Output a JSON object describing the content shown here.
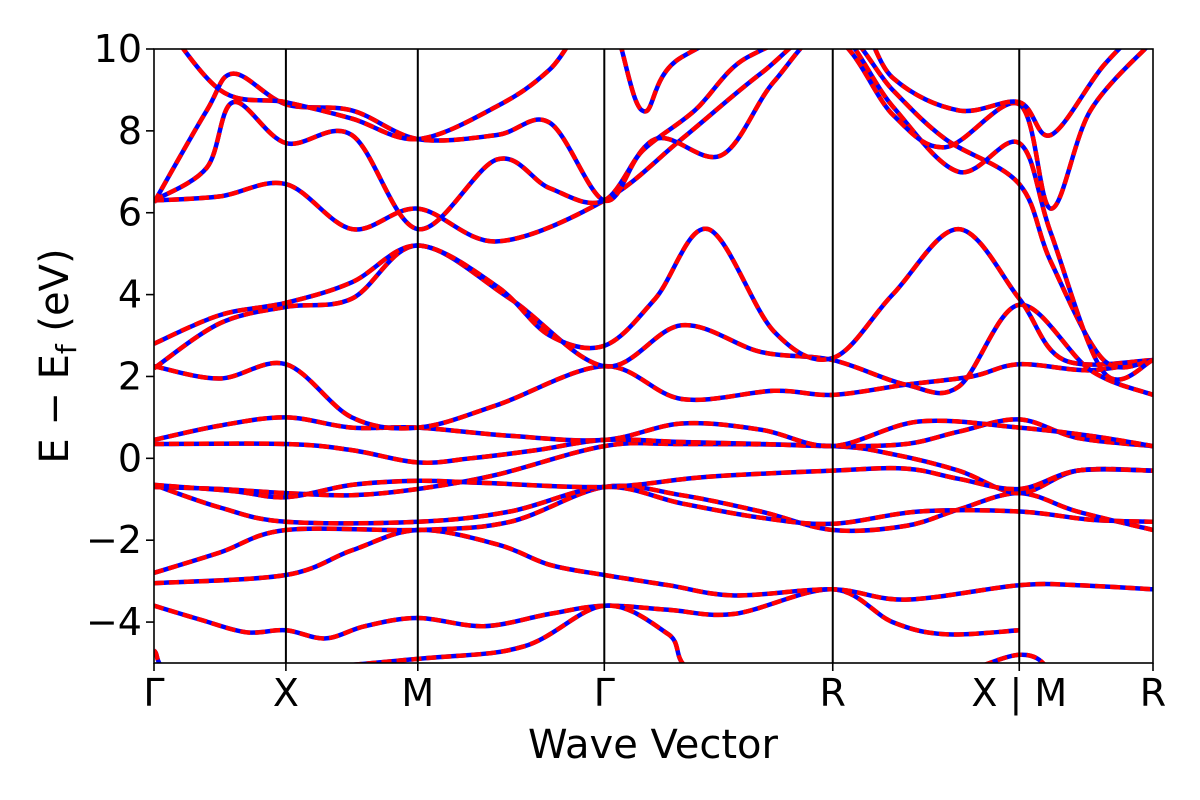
{
  "chart_data": {
    "type": "line",
    "title": "",
    "xlabel": "Wave Vector",
    "ylabel_parts": {
      "main": "E − E",
      "sub": "f",
      "unit": " (eV)"
    },
    "ylim": [
      -5,
      10
    ],
    "yticks": [
      10,
      8,
      6,
      4,
      2,
      0,
      -2,
      -4
    ],
    "ytick_labels": [
      "10",
      "8",
      "6",
      "4",
      "2",
      "0",
      "−2",
      "−4"
    ],
    "kpoints": [
      {
        "label": "Γ",
        "x": 0.0
      },
      {
        "label": "X",
        "x": 0.5
      },
      {
        "label": "M",
        "x": 1.0
      },
      {
        "label": "Γ",
        "x": 1.707
      },
      {
        "label": "R",
        "x": 2.573
      },
      {
        "label": "X | M",
        "x": 3.28
      },
      {
        "label": "R",
        "x": 3.787
      }
    ],
    "xlim": [
      0.0,
      3.787
    ],
    "colors": {
      "band_primary": "#ff0000",
      "band_secondary": "#0000ff",
      "frame": "#000000"
    },
    "series": [
      {
        "points": [
          [
            0,
            -3.6
          ],
          [
            0.18,
            -3.95
          ],
          [
            0.35,
            -4.25
          ],
          [
            0.5,
            -4.2
          ],
          [
            0.65,
            -4.4
          ],
          [
            0.8,
            -4.1
          ],
          [
            1.0,
            -3.9
          ],
          [
            1.25,
            -4.1
          ],
          [
            1.5,
            -3.8
          ],
          [
            1.707,
            -3.6
          ],
          [
            1.95,
            -3.7
          ],
          [
            2.2,
            -3.8
          ],
          [
            2.573,
            -3.2
          ],
          [
            2.8,
            -4.0
          ],
          [
            3.0,
            -4.3
          ],
          [
            3.28,
            -4.2
          ]
        ]
      },
      {
        "points": [
          [
            0,
            -3.05
          ],
          [
            0.5,
            -2.85
          ],
          [
            0.75,
            -2.25
          ],
          [
            1.0,
            -1.75
          ],
          [
            1.3,
            -2.1
          ],
          [
            1.5,
            -2.6
          ],
          [
            1.707,
            -2.85
          ],
          [
            1.95,
            -3.1
          ],
          [
            2.2,
            -3.35
          ],
          [
            2.573,
            -3.2
          ],
          [
            2.85,
            -3.45
          ],
          [
            3.28,
            -3.1
          ],
          [
            3.5,
            -3.1
          ],
          [
            3.787,
            -3.2
          ]
        ]
      },
      {
        "points": [
          [
            0,
            -2.8
          ],
          [
            0.25,
            -2.3
          ],
          [
            0.5,
            -1.75
          ],
          [
            1.0,
            -1.75
          ],
          [
            1.35,
            -1.55
          ],
          [
            1.707,
            -0.7
          ],
          [
            2.0,
            -0.9
          ],
          [
            2.3,
            -1.3
          ],
          [
            2.573,
            -1.75
          ],
          [
            2.85,
            -1.65
          ],
          [
            3.05,
            -1.25
          ],
          [
            3.28,
            -0.85
          ],
          [
            3.5,
            -1.3
          ],
          [
            3.787,
            -1.75
          ]
        ]
      },
      {
        "points": [
          [
            0,
            -0.65
          ],
          [
            0.25,
            -1.2
          ],
          [
            0.5,
            -1.55
          ],
          [
            1.0,
            -1.55
          ],
          [
            1.35,
            -1.3
          ],
          [
            1.707,
            -0.7
          ],
          [
            2.0,
            -1.1
          ],
          [
            2.3,
            -1.45
          ],
          [
            2.573,
            -1.6
          ],
          [
            2.9,
            -1.3
          ],
          [
            3.28,
            -1.3
          ],
          [
            3.55,
            -1.5
          ],
          [
            3.787,
            -1.55
          ]
        ]
      },
      {
        "points": [
          [
            0,
            -0.7
          ],
          [
            0.25,
            -0.75
          ],
          [
            0.5,
            -0.85
          ],
          [
            0.75,
            -0.9
          ],
          [
            1.0,
            -0.75
          ],
          [
            1.3,
            -0.4
          ],
          [
            1.707,
            0.3
          ],
          [
            2.0,
            0.35
          ],
          [
            2.573,
            0.3
          ],
          [
            2.8,
            0.1
          ],
          [
            3.05,
            -0.3
          ],
          [
            3.28,
            -0.85
          ],
          [
            3.5,
            -0.3
          ],
          [
            3.787,
            -0.3
          ]
        ]
      },
      {
        "points": [
          [
            0,
            -0.65
          ],
          [
            0.3,
            -0.8
          ],
          [
            0.5,
            -0.95
          ],
          [
            0.75,
            -0.65
          ],
          [
            1.0,
            -0.55
          ],
          [
            1.25,
            -0.6
          ],
          [
            1.707,
            -0.7
          ],
          [
            2.1,
            -0.45
          ],
          [
            2.573,
            -0.3
          ],
          [
            2.85,
            -0.25
          ],
          [
            3.05,
            -0.5
          ],
          [
            3.28,
            -0.75
          ],
          [
            3.5,
            -0.3
          ],
          [
            3.787,
            -0.3
          ]
        ]
      },
      {
        "points": [
          [
            0,
            0.35
          ],
          [
            0.5,
            0.35
          ],
          [
            0.75,
            0.2
          ],
          [
            1.0,
            -0.1
          ],
          [
            1.2,
            0.0
          ],
          [
            1.45,
            0.2
          ],
          [
            1.707,
            0.45
          ],
          [
            2.0,
            0.4
          ],
          [
            2.3,
            0.35
          ],
          [
            2.573,
            0.3
          ],
          [
            2.85,
            0.35
          ],
          [
            3.05,
            0.65
          ],
          [
            3.28,
            0.95
          ],
          [
            3.5,
            0.5
          ],
          [
            3.787,
            0.3
          ]
        ]
      },
      {
        "points": [
          [
            0,
            0.45
          ],
          [
            0.25,
            0.8
          ],
          [
            0.5,
            1.0
          ],
          [
            0.75,
            0.75
          ],
          [
            1.0,
            0.75
          ],
          [
            1.35,
            0.55
          ],
          [
            1.707,
            0.45
          ],
          [
            2.0,
            0.85
          ],
          [
            2.3,
            0.7
          ],
          [
            2.573,
            0.3
          ],
          [
            2.9,
            0.9
          ],
          [
            3.28,
            0.75
          ],
          [
            3.55,
            0.55
          ],
          [
            3.787,
            0.3
          ]
        ]
      },
      {
        "points": [
          [
            0,
            2.25
          ],
          [
            0.25,
            1.95
          ],
          [
            0.5,
            2.3
          ],
          [
            0.75,
            1.0
          ],
          [
            1.0,
            0.75
          ],
          [
            1.3,
            1.3
          ],
          [
            1.707,
            2.25
          ],
          [
            2.0,
            1.45
          ],
          [
            2.35,
            1.65
          ],
          [
            2.573,
            1.55
          ],
          [
            2.85,
            1.8
          ],
          [
            3.1,
            2.0
          ],
          [
            3.28,
            2.3
          ],
          [
            3.55,
            2.15
          ],
          [
            3.787,
            2.4
          ]
        ]
      },
      {
        "points": [
          [
            0,
            2.2
          ],
          [
            0.25,
            3.3
          ],
          [
            0.5,
            3.7
          ],
          [
            0.75,
            3.9
          ],
          [
            1.0,
            5.2
          ],
          [
            1.35,
            3.9
          ],
          [
            1.707,
            2.25
          ],
          [
            2.0,
            3.25
          ],
          [
            2.3,
            2.6
          ],
          [
            2.573,
            2.4
          ],
          [
            2.85,
            1.8
          ],
          [
            3.05,
            1.75
          ],
          [
            3.28,
            3.75
          ],
          [
            3.55,
            2.15
          ],
          [
            3.787,
            1.55
          ]
        ]
      },
      {
        "points": [
          [
            0,
            2.8
          ],
          [
            0.25,
            3.5
          ],
          [
            0.5,
            3.8
          ],
          [
            0.75,
            4.3
          ],
          [
            1.0,
            5.2
          ],
          [
            1.3,
            4.2
          ],
          [
            1.5,
            3.0
          ],
          [
            1.707,
            2.75
          ],
          [
            1.9,
            3.9
          ],
          [
            2.1,
            5.6
          ],
          [
            2.35,
            3.1
          ],
          [
            2.573,
            2.45
          ],
          [
            2.8,
            4.0
          ],
          [
            3.05,
            5.6
          ],
          [
            3.28,
            3.9
          ],
          [
            3.45,
            2.4
          ],
          [
            3.787,
            2.4
          ]
        ]
      },
      {
        "points": [
          [
            0,
            6.3
          ],
          [
            0.25,
            6.4
          ],
          [
            0.5,
            6.7
          ],
          [
            0.75,
            5.6
          ],
          [
            1.0,
            6.1
          ],
          [
            1.3,
            5.3
          ],
          [
            1.707,
            6.3
          ],
          [
            2.0,
            7.8
          ],
          [
            2.3,
            9.4
          ],
          [
            2.573,
            10.6
          ],
          [
            2.8,
            9.0
          ],
          [
            3.0,
            7.8
          ],
          [
            3.28,
            6.7
          ],
          [
            3.4,
            4.8
          ],
          [
            3.6,
            2.4
          ],
          [
            3.787,
            2.4
          ]
        ]
      },
      {
        "points": [
          [
            0,
            6.3
          ],
          [
            0.2,
            7.1
          ],
          [
            0.3,
            8.7
          ],
          [
            0.5,
            7.7
          ],
          [
            0.75,
            7.9
          ],
          [
            1.0,
            5.6
          ],
          [
            1.3,
            7.3
          ],
          [
            1.5,
            6.6
          ],
          [
            1.707,
            6.3
          ],
          [
            1.9,
            7.8
          ],
          [
            2.15,
            7.4
          ],
          [
            2.35,
            9.2
          ],
          [
            2.573,
            10.5
          ],
          [
            2.8,
            8.6
          ],
          [
            3.05,
            7.0
          ],
          [
            3.28,
            7.7
          ],
          [
            3.4,
            5.5
          ],
          [
            3.6,
            2.1
          ],
          [
            3.787,
            2.4
          ]
        ]
      },
      {
        "points": [
          [
            0,
            6.25
          ],
          [
            0.2,
            8.5
          ],
          [
            0.3,
            9.4
          ],
          [
            0.5,
            8.65
          ],
          [
            0.75,
            8.5
          ],
          [
            1.0,
            7.8
          ],
          [
            1.3,
            7.9
          ],
          [
            1.5,
            8.2
          ],
          [
            1.707,
            6.3
          ],
          [
            1.85,
            7.5
          ],
          [
            2.05,
            8.5
          ],
          [
            2.25,
            9.8
          ],
          [
            2.573,
            10.3
          ],
          [
            2.8,
            8.4
          ],
          [
            3.0,
            7.6
          ],
          [
            3.28,
            8.65
          ],
          [
            3.4,
            6.1
          ],
          [
            3.55,
            8.5
          ],
          [
            3.787,
            10.2
          ]
        ]
      },
      {
        "points": [
          [
            0,
            11.0
          ],
          [
            0.25,
            9.0
          ],
          [
            0.5,
            8.7
          ],
          [
            0.75,
            8.3
          ],
          [
            1.0,
            7.8
          ],
          [
            1.3,
            8.6
          ],
          [
            1.5,
            9.5
          ],
          [
            1.707,
            11.0
          ],
          [
            1.85,
            8.5
          ],
          [
            2.0,
            9.8
          ],
          [
            2.573,
            11.2
          ],
          [
            2.8,
            9.3
          ],
          [
            3.05,
            8.5
          ],
          [
            3.28,
            8.7
          ],
          [
            3.4,
            7.9
          ],
          [
            3.6,
            9.6
          ],
          [
            3.787,
            10.8
          ]
        ]
      },
      {
        "points": [
          [
            0,
            -4.7
          ],
          [
            0.15,
            -5.3
          ],
          [
            1.0,
            -4.9
          ],
          [
            1.4,
            -4.6
          ],
          [
            1.707,
            -3.6
          ],
          [
            1.95,
            -4.3
          ],
          [
            2.1,
            -5.3
          ],
          [
            2.9,
            -5.4
          ],
          [
            3.28,
            -4.8
          ],
          [
            3.4,
            -5.2
          ]
        ]
      }
    ]
  }
}
